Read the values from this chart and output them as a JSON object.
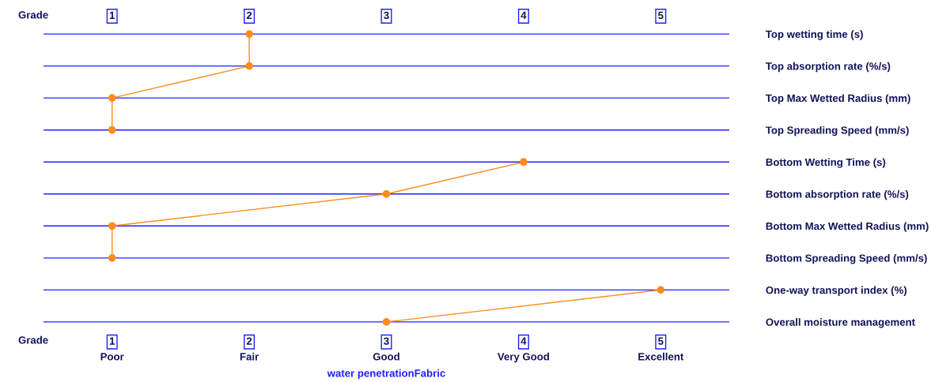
{
  "chart_data": {
    "type": "line",
    "orientation": "horizontal",
    "categories": [
      "Top wetting time (s)",
      "Top absorption rate (%/s)",
      "Top Max Wetted Radius (mm)",
      "Top Spreading Speed (mm/s)",
      "Bottom Wetting Time (s)",
      "Bottom absorption rate (%/s)",
      "Bottom Max Wetted Radius (mm)",
      "Bottom Spreading Speed (mm/s)",
      "One-way transport index (%)",
      "Overall moisture management"
    ],
    "series": [
      {
        "color": "#ff8c1a",
        "values": [
          2,
          2,
          1,
          1,
          null,
          null,
          null,
          null,
          null,
          null
        ]
      },
      {
        "color": "#ff8c1a",
        "values": [
          null,
          null,
          null,
          null,
          4,
          3,
          1,
          1,
          null,
          null
        ]
      },
      {
        "color": "#ff8c1a",
        "values": [
          null,
          null,
          null,
          null,
          null,
          null,
          null,
          null,
          5,
          3
        ]
      }
    ],
    "marker": "circle",
    "xlim": [
      0.5,
      5.5
    ],
    "xticks": [
      1,
      2,
      3,
      4,
      5
    ],
    "x2lim": [
      0.5,
      5.5
    ],
    "x2ticks": [
      1,
      2,
      3,
      4,
      5
    ],
    "xlabel": "water penetrationFabric",
    "grid": "y",
    "annotations": [
      "Grade",
      "Grade",
      "Poor",
      "Fair",
      "Good",
      "Very Good",
      "Excellent"
    ]
  }
}
